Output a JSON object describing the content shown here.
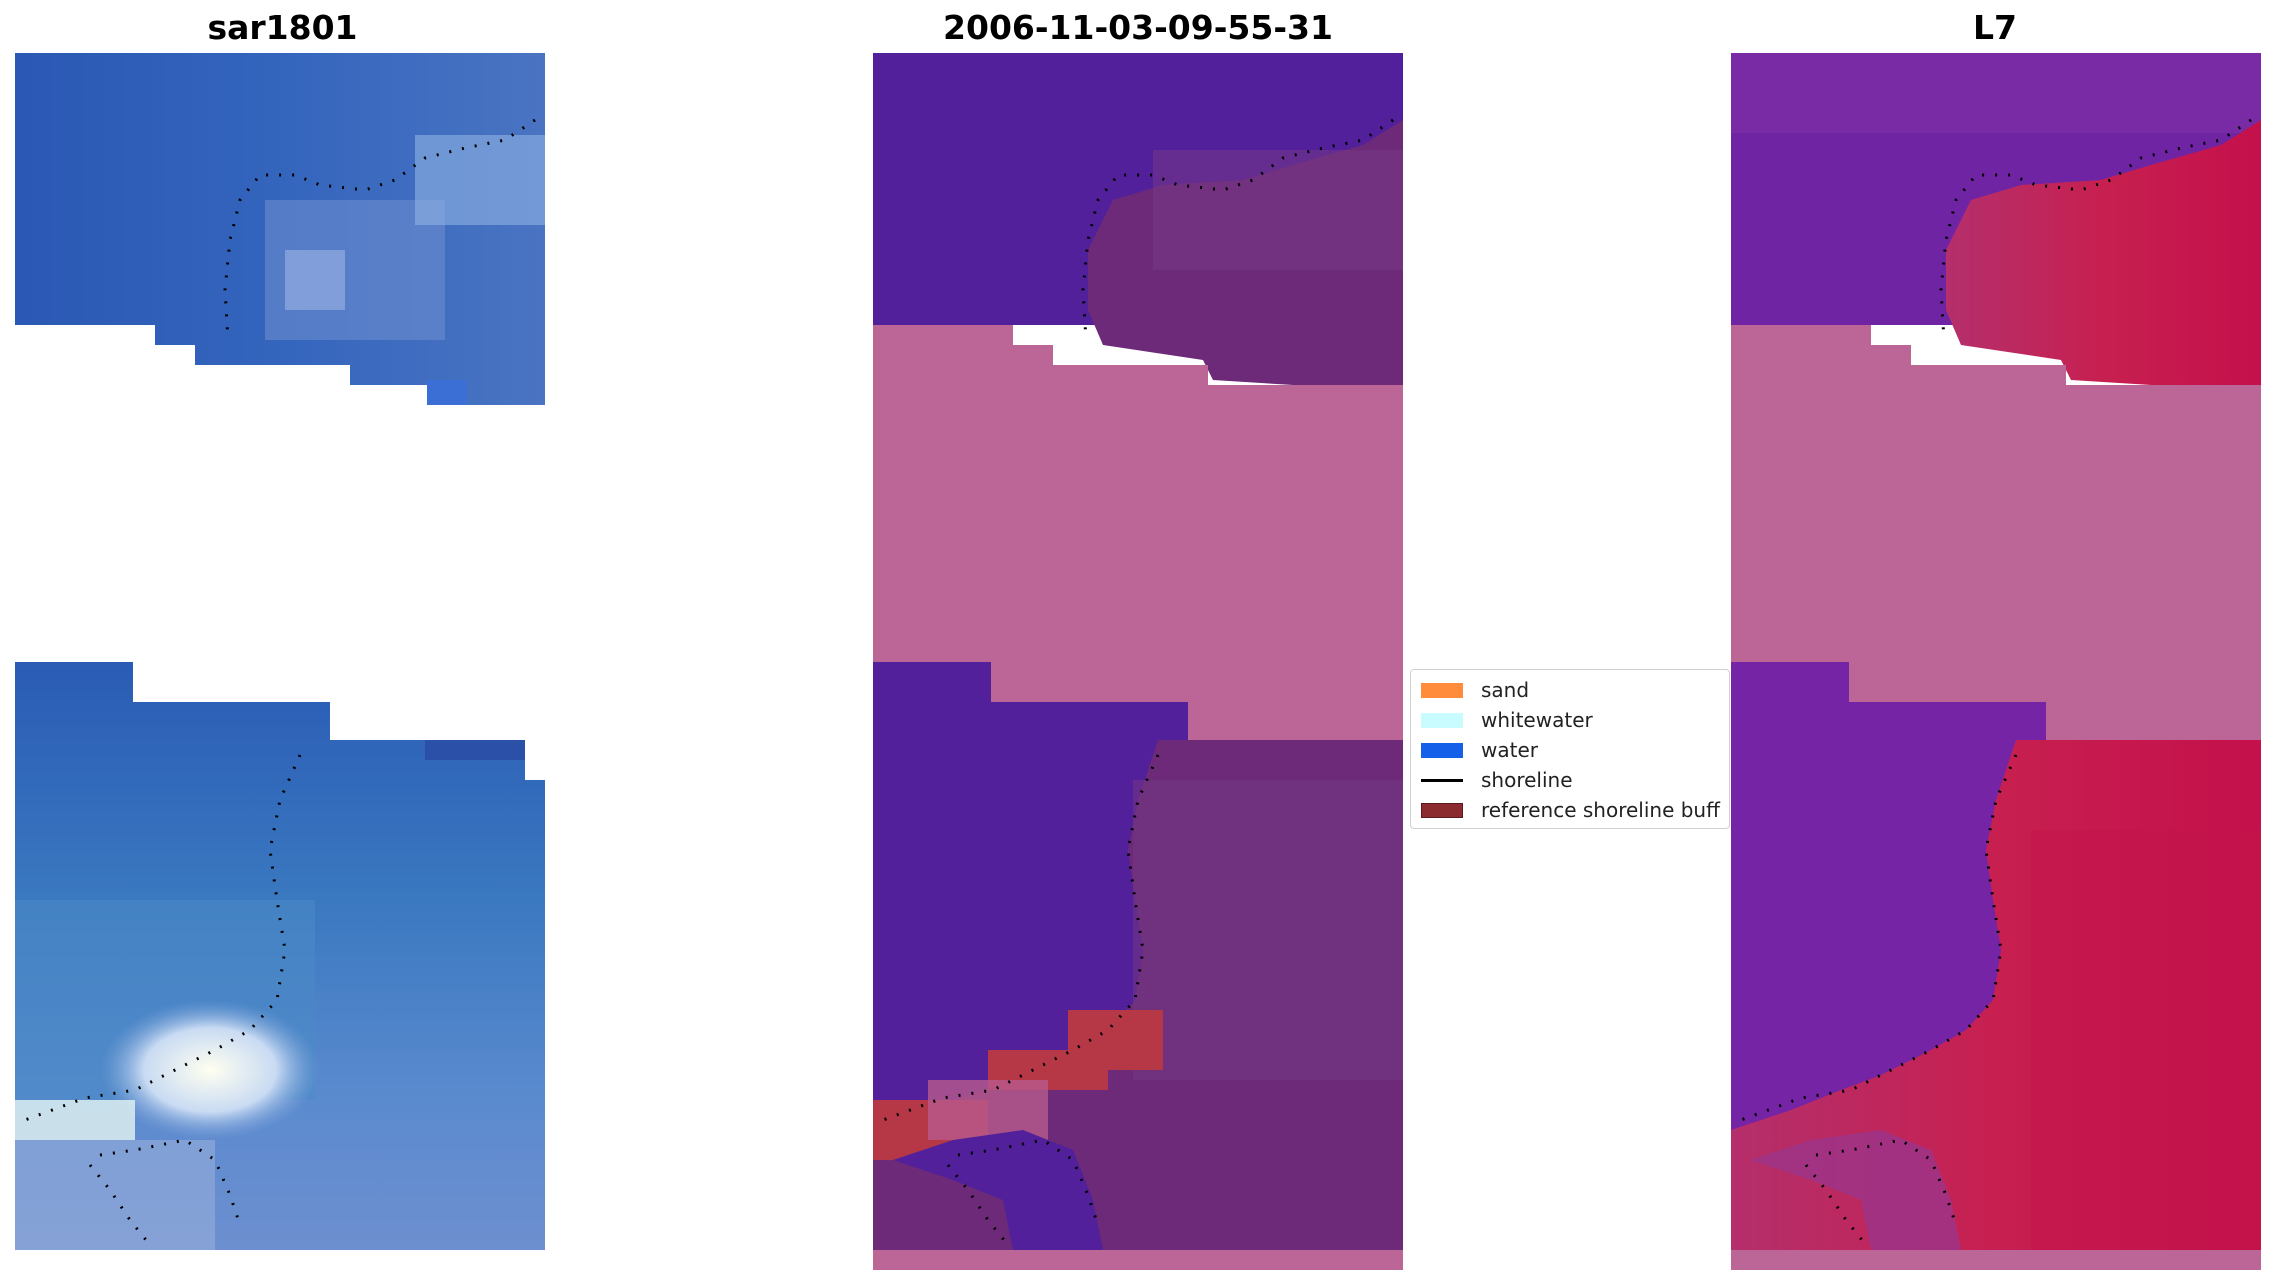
{
  "panels": {
    "left_title": "sar1801",
    "middle_title": "2006-11-03-09-55-31",
    "right_title": "L7"
  },
  "legend": {
    "items": [
      {
        "label": "sand",
        "color": "#ff8c3a",
        "kind": "patch"
      },
      {
        "label": "whitewater",
        "color": "#c8fcff",
        "kind": "patch"
      },
      {
        "label": "water",
        "color": "#1560e8",
        "kind": "patch"
      },
      {
        "label": "shoreline",
        "color": "#000000",
        "kind": "line"
      },
      {
        "label": "reference shoreline buff",
        "color": "#8b2a2f",
        "kind": "patch"
      }
    ]
  },
  "colors": {
    "sar_water": "#2c5fb8",
    "sar_water_light": "#4f7fcc",
    "sar_foam": "#e8f4ff",
    "classified_water": "#52209a",
    "classified_land": "#6c2a78",
    "buffer_pink": "#bc6697",
    "buffer_red": "#b63746",
    "l7_water": "#6a1eaa",
    "l7_land": "#c8174f",
    "shoreline_dots": "#000000"
  }
}
